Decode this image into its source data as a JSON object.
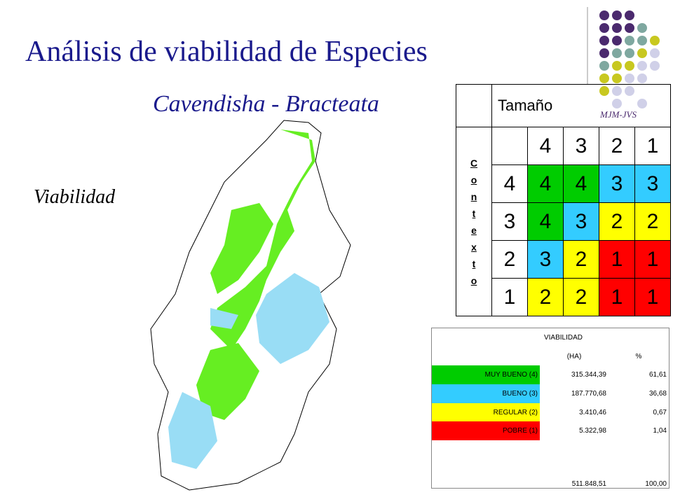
{
  "title": "Análisis de viabilidad de Especies",
  "subtitle": "Cavendisha - Bracteata",
  "side_label": "Viabilidad",
  "signature": "MJM-JVS",
  "colors": {
    "4": "#00cc00",
    "3": "#33ccff",
    "2": "#ffff00",
    "1": "#ff0000"
  },
  "matrix": {
    "column_header": "Tamaño",
    "row_header": "Contexto",
    "columns": [
      "4",
      "3",
      "2",
      "1"
    ],
    "rows": [
      {
        "label": "4",
        "cells": [
          "4",
          "4",
          "3",
          "3"
        ]
      },
      {
        "label": "3",
        "cells": [
          "4",
          "3",
          "2",
          "2"
        ]
      },
      {
        "label": "2",
        "cells": [
          "3",
          "2",
          "1",
          "1"
        ]
      },
      {
        "label": "1",
        "cells": [
          "2",
          "2",
          "1",
          "1"
        ]
      }
    ]
  },
  "viability_table": {
    "title": "VIABILIDAD",
    "headers": [
      "(HA)",
      "%"
    ],
    "rows": [
      {
        "label": "MUY BUENO (4)",
        "level": "4",
        "ha": "315.344,39",
        "pct": "61,61"
      },
      {
        "label": "BUENO (3)",
        "level": "3",
        "ha": "187.770,68",
        "pct": "36,68"
      },
      {
        "label": "REGULAR (2)",
        "level": "2",
        "ha": "3.410,46",
        "pct": "0,67"
      },
      {
        "label": "POBRE (1)",
        "level": "1",
        "ha": "5.322,98",
        "pct": "1,04"
      }
    ],
    "total": {
      "ha": "511.848,51",
      "pct": "100,00"
    }
  }
}
